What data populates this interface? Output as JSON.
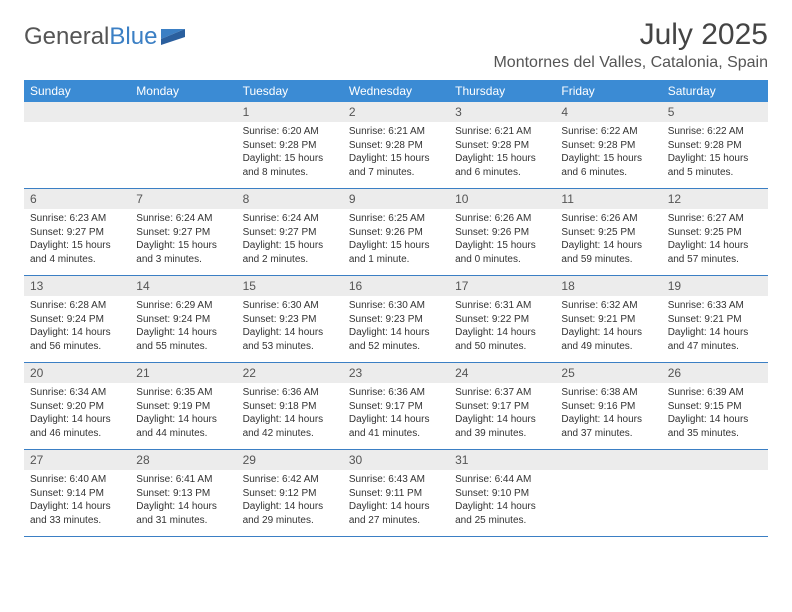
{
  "logo": {
    "text_a": "General",
    "text_b": "Blue"
  },
  "title": "July 2025",
  "subtitle": "Montornes del Valles, Catalonia, Spain",
  "colors": {
    "header_bg": "#3b8bd4",
    "header_fg": "#ffffff",
    "daynum_bg": "#ececec",
    "border": "#3b7fc4",
    "logo_gray": "#555555",
    "logo_blue": "#3b7fc4",
    "background": "#ffffff"
  },
  "day_names": [
    "Sunday",
    "Monday",
    "Tuesday",
    "Wednesday",
    "Thursday",
    "Friday",
    "Saturday"
  ],
  "weeks": [
    [
      {
        "n": "",
        "lines": []
      },
      {
        "n": "",
        "lines": []
      },
      {
        "n": "1",
        "lines": [
          "Sunrise: 6:20 AM",
          "Sunset: 9:28 PM",
          "Daylight: 15 hours and 8 minutes."
        ]
      },
      {
        "n": "2",
        "lines": [
          "Sunrise: 6:21 AM",
          "Sunset: 9:28 PM",
          "Daylight: 15 hours and 7 minutes."
        ]
      },
      {
        "n": "3",
        "lines": [
          "Sunrise: 6:21 AM",
          "Sunset: 9:28 PM",
          "Daylight: 15 hours and 6 minutes."
        ]
      },
      {
        "n": "4",
        "lines": [
          "Sunrise: 6:22 AM",
          "Sunset: 9:28 PM",
          "Daylight: 15 hours and 6 minutes."
        ]
      },
      {
        "n": "5",
        "lines": [
          "Sunrise: 6:22 AM",
          "Sunset: 9:28 PM",
          "Daylight: 15 hours and 5 minutes."
        ]
      }
    ],
    [
      {
        "n": "6",
        "lines": [
          "Sunrise: 6:23 AM",
          "Sunset: 9:27 PM",
          "Daylight: 15 hours and 4 minutes."
        ]
      },
      {
        "n": "7",
        "lines": [
          "Sunrise: 6:24 AM",
          "Sunset: 9:27 PM",
          "Daylight: 15 hours and 3 minutes."
        ]
      },
      {
        "n": "8",
        "lines": [
          "Sunrise: 6:24 AM",
          "Sunset: 9:27 PM",
          "Daylight: 15 hours and 2 minutes."
        ]
      },
      {
        "n": "9",
        "lines": [
          "Sunrise: 6:25 AM",
          "Sunset: 9:26 PM",
          "Daylight: 15 hours and 1 minute."
        ]
      },
      {
        "n": "10",
        "lines": [
          "Sunrise: 6:26 AM",
          "Sunset: 9:26 PM",
          "Daylight: 15 hours and 0 minutes."
        ]
      },
      {
        "n": "11",
        "lines": [
          "Sunrise: 6:26 AM",
          "Sunset: 9:25 PM",
          "Daylight: 14 hours and 59 minutes."
        ]
      },
      {
        "n": "12",
        "lines": [
          "Sunrise: 6:27 AM",
          "Sunset: 9:25 PM",
          "Daylight: 14 hours and 57 minutes."
        ]
      }
    ],
    [
      {
        "n": "13",
        "lines": [
          "Sunrise: 6:28 AM",
          "Sunset: 9:24 PM",
          "Daylight: 14 hours and 56 minutes."
        ]
      },
      {
        "n": "14",
        "lines": [
          "Sunrise: 6:29 AM",
          "Sunset: 9:24 PM",
          "Daylight: 14 hours and 55 minutes."
        ]
      },
      {
        "n": "15",
        "lines": [
          "Sunrise: 6:30 AM",
          "Sunset: 9:23 PM",
          "Daylight: 14 hours and 53 minutes."
        ]
      },
      {
        "n": "16",
        "lines": [
          "Sunrise: 6:30 AM",
          "Sunset: 9:23 PM",
          "Daylight: 14 hours and 52 minutes."
        ]
      },
      {
        "n": "17",
        "lines": [
          "Sunrise: 6:31 AM",
          "Sunset: 9:22 PM",
          "Daylight: 14 hours and 50 minutes."
        ]
      },
      {
        "n": "18",
        "lines": [
          "Sunrise: 6:32 AM",
          "Sunset: 9:21 PM",
          "Daylight: 14 hours and 49 minutes."
        ]
      },
      {
        "n": "19",
        "lines": [
          "Sunrise: 6:33 AM",
          "Sunset: 9:21 PM",
          "Daylight: 14 hours and 47 minutes."
        ]
      }
    ],
    [
      {
        "n": "20",
        "lines": [
          "Sunrise: 6:34 AM",
          "Sunset: 9:20 PM",
          "Daylight: 14 hours and 46 minutes."
        ]
      },
      {
        "n": "21",
        "lines": [
          "Sunrise: 6:35 AM",
          "Sunset: 9:19 PM",
          "Daylight: 14 hours and 44 minutes."
        ]
      },
      {
        "n": "22",
        "lines": [
          "Sunrise: 6:36 AM",
          "Sunset: 9:18 PM",
          "Daylight: 14 hours and 42 minutes."
        ]
      },
      {
        "n": "23",
        "lines": [
          "Sunrise: 6:36 AM",
          "Sunset: 9:17 PM",
          "Daylight: 14 hours and 41 minutes."
        ]
      },
      {
        "n": "24",
        "lines": [
          "Sunrise: 6:37 AM",
          "Sunset: 9:17 PM",
          "Daylight: 14 hours and 39 minutes."
        ]
      },
      {
        "n": "25",
        "lines": [
          "Sunrise: 6:38 AM",
          "Sunset: 9:16 PM",
          "Daylight: 14 hours and 37 minutes."
        ]
      },
      {
        "n": "26",
        "lines": [
          "Sunrise: 6:39 AM",
          "Sunset: 9:15 PM",
          "Daylight: 14 hours and 35 minutes."
        ]
      }
    ],
    [
      {
        "n": "27",
        "lines": [
          "Sunrise: 6:40 AM",
          "Sunset: 9:14 PM",
          "Daylight: 14 hours and 33 minutes."
        ]
      },
      {
        "n": "28",
        "lines": [
          "Sunrise: 6:41 AM",
          "Sunset: 9:13 PM",
          "Daylight: 14 hours and 31 minutes."
        ]
      },
      {
        "n": "29",
        "lines": [
          "Sunrise: 6:42 AM",
          "Sunset: 9:12 PM",
          "Daylight: 14 hours and 29 minutes."
        ]
      },
      {
        "n": "30",
        "lines": [
          "Sunrise: 6:43 AM",
          "Sunset: 9:11 PM",
          "Daylight: 14 hours and 27 minutes."
        ]
      },
      {
        "n": "31",
        "lines": [
          "Sunrise: 6:44 AM",
          "Sunset: 9:10 PM",
          "Daylight: 14 hours and 25 minutes."
        ]
      },
      {
        "n": "",
        "lines": []
      },
      {
        "n": "",
        "lines": []
      }
    ]
  ]
}
